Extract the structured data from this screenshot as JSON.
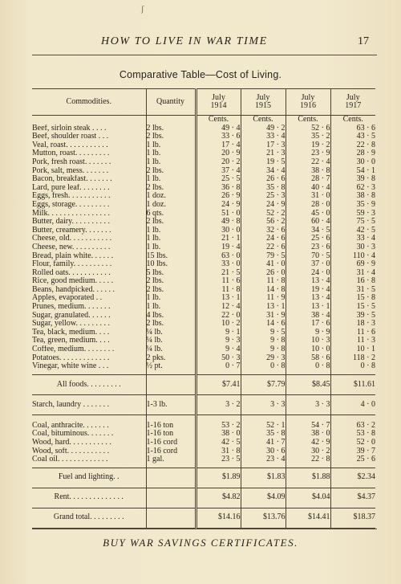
{
  "header": {
    "title": "HOW TO LIVE IN WAR TIME",
    "page_number": "17"
  },
  "table_title": "Comparative Table—Cost of Living.",
  "columns": {
    "commodities": "Commodities.",
    "quantity": "Quantity",
    "years": [
      [
        "July",
        "1914"
      ],
      [
        "July",
        "1915"
      ],
      [
        "July",
        "1916"
      ],
      [
        "July",
        "1917"
      ]
    ]
  },
  "unit_label": "Cents.",
  "food_items": [
    {
      "name": "Beef, sirloin steak . . . .",
      "qty": "2 lbs.",
      "values": [
        "49 · 4",
        "49 · 2",
        "52 · 6",
        "63 · 6"
      ]
    },
    {
      "name": "Beef, shoulder roast . . .",
      "qty": "2 lbs.",
      "values": [
        "33 · 6",
        "33 · 4",
        "35 · 2",
        "43 · 5"
      ]
    },
    {
      "name": "Veal, roast. . . . . . . . . . .",
      "qty": "1 lb.",
      "values": [
        "17 · 4",
        "17 · 3",
        "19 · 2",
        "22 · 8"
      ]
    },
    {
      "name": "Mutton, roast. . . . . . . . .",
      "qty": "1 lb.",
      "values": [
        "20 · 9",
        "21 · 3",
        "23 · 9",
        "28 · 9"
      ]
    },
    {
      "name": "Pork, fresh roast. . . . . . .",
      "qty": "1 lb.",
      "values": [
        "20 · 2",
        "19 · 5",
        "22 · 4",
        "30 · 0"
      ]
    },
    {
      "name": "Pork, salt, mess. . . . . . .",
      "qty": "2 lbs.",
      "values": [
        "37 · 4",
        "34 · 4",
        "38 · 8",
        "54 · 1"
      ]
    },
    {
      "name": "Bacon, breakfast. . . . . . .",
      "qty": "1 lb.",
      "values": [
        "25 · 5",
        "26 · 6",
        "28 · 7",
        "39 · 8"
      ]
    },
    {
      "name": "Lard, pure leaf. . . . . . . .",
      "qty": "2 lbs.",
      "values": [
        "36 · 8",
        "35 · 8",
        "40 · 4",
        "62 · 3"
      ]
    },
    {
      "name": "Eggs, fresh. . . . . . . . . . .",
      "qty": "1 doz.",
      "values": [
        "26 · 9",
        "25 · 3",
        "31 · 0",
        "38 · 8"
      ]
    },
    {
      "name": "Eggs, storage. . . . . . . . .",
      "qty": "1 doz.",
      "values": [
        "24 · 9",
        "24 · 9",
        "28 · 0",
        "35 · 9"
      ]
    },
    {
      "name": "Milk. . . . . . . . . . . . . . . .",
      "qty": "6 qts.",
      "values": [
        "51 · 0",
        "52 · 2",
        "45 · 0",
        "59 · 3"
      ]
    },
    {
      "name": "Butter, dairy. . . . . . . . . .",
      "qty": "2 lbs.",
      "values": [
        "49 · 8",
        "56 · 2",
        "60 · 4",
        "75 · 5"
      ]
    },
    {
      "name": "Butter, creamery. . . . . . .",
      "qty": "1 lb.",
      "values": [
        "30 · 0",
        "32 · 6",
        "34 · 5",
        "42 · 5"
      ]
    },
    {
      "name": "Cheese, old. . . . . . . . . . .",
      "qty": "1 lb.",
      "values": [
        "21 · 1",
        "24 · 6",
        "25 · 6",
        "33 · 4"
      ]
    },
    {
      "name": "Cheese, new. . . . . . . . . .",
      "qty": "1 lb.",
      "values": [
        "19 · 4",
        "22 · 6",
        "23 · 6",
        "30 · 3"
      ]
    },
    {
      "name": "Bread, plain white. . . . . .",
      "qty": "15 lbs.",
      "values": [
        "63 · 0",
        "79 · 5",
        "70 · 5",
        "110 · 4"
      ]
    },
    {
      "name": "Flour, family. . . . . . . . . .",
      "qty": "10 lbs.",
      "values": [
        "33 · 0",
        "41 · 0",
        "37 · 0",
        "69 · 9"
      ]
    },
    {
      "name": "Rolled oats. . . . . . . . . . .",
      "qty": "5 lbs.",
      "values": [
        "21 · 5",
        "26 · 0",
        "24 · 0",
        "31 · 4"
      ]
    },
    {
      "name": "Rice, good medium. . . . .",
      "qty": "2 lbs.",
      "values": [
        "11 · 6",
        "11 · 8",
        "13 · 4",
        "16 · 8"
      ]
    },
    {
      "name": "Beans, handpicked. . . . . .",
      "qty": "2 lbs.",
      "values": [
        "11 · 8",
        "14 · 8",
        "19 · 4",
        "31 · 5"
      ]
    },
    {
      "name": "Apples, evaporated . .",
      "qty": "1 lb.",
      "values": [
        "13 · 1",
        "11 · 9",
        "13 · 4",
        "15 · 8"
      ]
    },
    {
      "name": "Prunes, medium. . . . . . .",
      "qty": "1 lb.",
      "values": [
        "12 · 4",
        "13 · 1",
        "13 · 1",
        "15 · 5"
      ]
    },
    {
      "name": "Sugar, granulated. . . . . .",
      "qty": "4 lbs.",
      "values": [
        "22 · 0",
        "31 · 9",
        "38 · 4",
        "39 · 5"
      ]
    },
    {
      "name": "Sugar, yellow. . . . . . . . .",
      "qty": "2 lbs.",
      "values": [
        "10 · 2",
        "14 · 6",
        "17 · 6",
        "18 · 3"
      ]
    },
    {
      "name": "Tea, black, medium. . . .",
      "qty": "¼ lb.",
      "values": [
        "9 · 1",
        "9 · 5",
        "9 · 9",
        "11 · 6"
      ]
    },
    {
      "name": "Tea, green, medium. . . .",
      "qty": "¼ lb.",
      "values": [
        "9 · 3",
        "9 · 8",
        "10 · 3",
        "11 · 3"
      ]
    },
    {
      "name": "Coffee, medium. . . . . . . .",
      "qty": "¼ lb.",
      "values": [
        "9 · 4",
        "9 · 8",
        "10 · 0",
        "10 · 1"
      ]
    },
    {
      "name": "Potatoes. . . . . . . . . . . . .",
      "qty": "2 pks.",
      "values": [
        "50 · 3",
        "29 · 3",
        "58 · 6",
        "118 · 2"
      ]
    },
    {
      "name": "Vinegar, white wine . . .",
      "qty": "½ pt.",
      "values": [
        "0 · 7",
        "0 · 8",
        "0 · 8",
        "0 · 8"
      ]
    }
  ],
  "all_foods": {
    "label": "All foods. . . . . . . . .",
    "values": [
      "$7.41",
      "$7.79",
      "$8.45",
      "$11.61"
    ]
  },
  "starch": {
    "name": "Starch, laundry . . . . . . .",
    "qty": "1-3 lb.",
    "values": [
      "3 · 2",
      "3 · 3",
      "3 · 3",
      "4 · 0"
    ]
  },
  "fuel_items": [
    {
      "name": "Coal, anthracite. . . . . . .",
      "qty": "1-16 ton",
      "values": [
        "53 · 2",
        "52 · 1",
        "54 · 7",
        "63 · 2"
      ]
    },
    {
      "name": "Coal, bituminous. . . . . . .",
      "qty": "1-16 ton",
      "values": [
        "38 · 0",
        "35 · 8",
        "38 · 0",
        "53 · 8"
      ]
    },
    {
      "name": "Wood, hard. . . . . . . . . . .",
      "qty": "1-16 cord",
      "values": [
        "42 · 5",
        "41 · 7",
        "42 · 9",
        "52 · 0"
      ]
    },
    {
      "name": "Wood, soft. . . . . . . . . . .",
      "qty": "1-16 cord",
      "values": [
        "31 · 8",
        "30 · 6",
        "30 · 2",
        "39 · 7"
      ]
    },
    {
      "name": "Coal oil. . . . . . . . . . . . .",
      "qty": "1 gal.",
      "values": [
        "23 · 5",
        "23 · 4",
        "22 · 8",
        "25 · 6"
      ]
    }
  ],
  "fuel_total": {
    "label": "Fuel and lighting. .",
    "values": [
      "$1.89",
      "$1.83",
      "$1.88",
      "$2.34"
    ]
  },
  "rent": {
    "label": "Rent. . . . . . . . . . . . . .",
    "values": [
      "$4.82",
      "$4.09",
      "$4.04",
      "$4.37"
    ]
  },
  "grand_total": {
    "label": "Grand total. . . . . . . . .",
    "values": [
      "$14.16",
      "$13.76",
      "$14.41",
      "$18.37"
    ]
  },
  "footer": "BUY WAR SAVINGS CERTIFICATES."
}
